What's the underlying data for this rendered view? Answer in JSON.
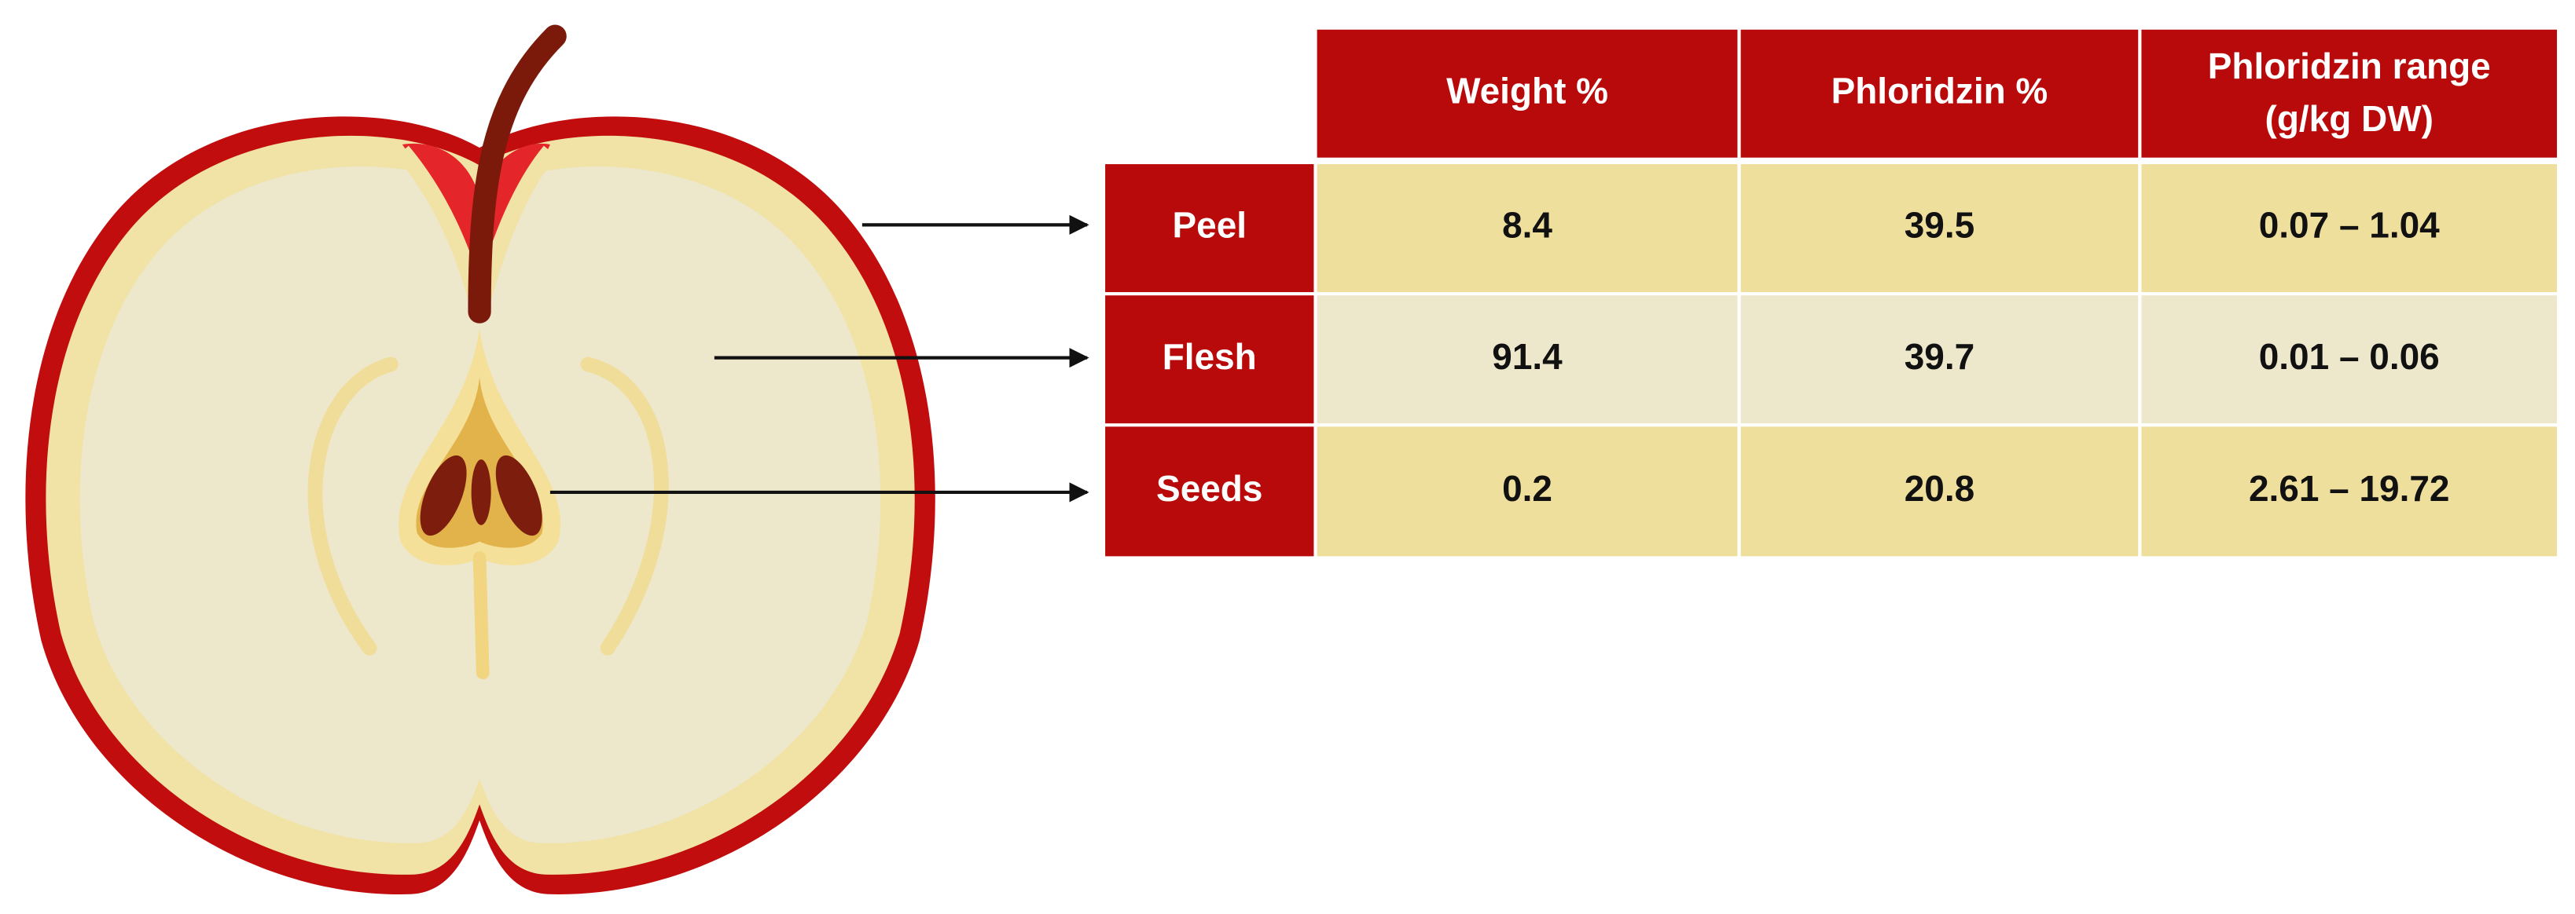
{
  "table": {
    "columns": [
      "Weight %",
      "Phloridzin %",
      [
        "Phloridzin range",
        "(g/kg DW)"
      ]
    ],
    "rows": [
      {
        "label": "Peel",
        "cells": [
          "8.4",
          "39.5",
          "0.07 – 1.04"
        ]
      },
      {
        "label": "Flesh",
        "cells": [
          "91.4",
          "39.7",
          "0.01 – 0.06"
        ]
      },
      {
        "label": "Seeds",
        "cells": [
          "0.2",
          "20.8",
          "2.61 – 19.72"
        ]
      }
    ]
  }
}
